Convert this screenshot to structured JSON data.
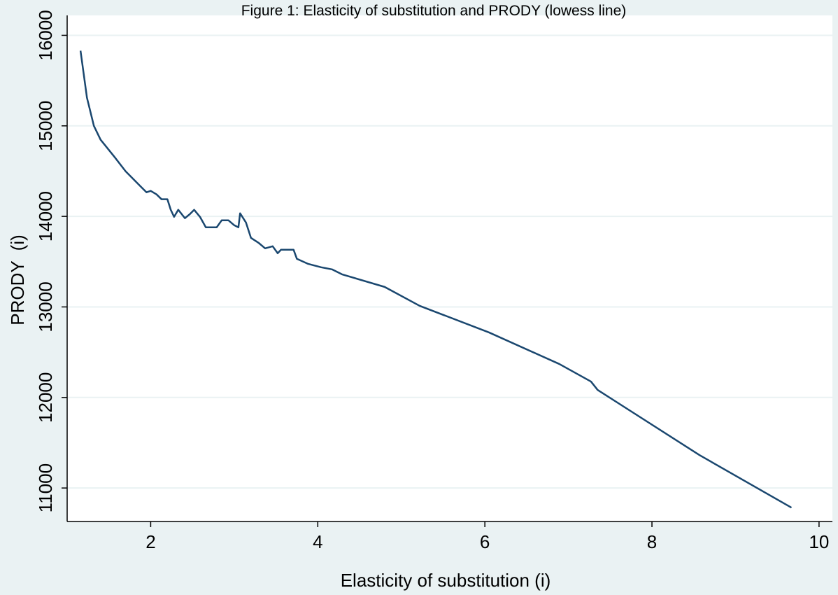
{
  "chart_data": {
    "type": "line",
    "title": "Figure 1: Elasticity of substitution and PRODY (lowess line)",
    "x_label": "Elasticity of substitution (i)",
    "y_label": "PRODY  (i)",
    "xlim": [
      1,
      10.16
    ],
    "ylim": [
      10630,
      16220
    ],
    "xticks": [
      2,
      4,
      6,
      8,
      10
    ],
    "yticks": [
      11000,
      12000,
      13000,
      14000,
      15000,
      16000
    ],
    "grid": true,
    "x": [
      1.16,
      1.237,
      1.32,
      1.4,
      1.57,
      1.7,
      1.865,
      1.95,
      2.0,
      2.07,
      2.13,
      2.2,
      2.24,
      2.28,
      2.33,
      2.41,
      2.47,
      2.52,
      2.59,
      2.66,
      2.79,
      2.85,
      2.93,
      3.0,
      3.05,
      3.07,
      3.14,
      3.2,
      3.29,
      3.37,
      3.46,
      3.52,
      3.56,
      3.71,
      3.75,
      3.88,
      4.04,
      4.17,
      4.29,
      4.8,
      5.22,
      6.05,
      6.89,
      7.27,
      7.35,
      8.57,
      9.67
    ],
    "series": [
      {
        "color": "#1a476f",
        "values": [
          15830,
          15311,
          15000,
          14847,
          14653,
          14498,
          14344,
          14266,
          14282,
          14243,
          14189,
          14189,
          14073,
          13995,
          14073,
          13980,
          14026,
          14073,
          13995,
          13879,
          13879,
          13957,
          13957,
          13902,
          13879,
          14034,
          13933,
          13763,
          13709,
          13647,
          13670,
          13593,
          13632,
          13632,
          13531,
          13477,
          13438,
          13415,
          13360,
          13221,
          13012,
          12718,
          12370,
          12176,
          12083,
          11363,
          10783
        ]
      }
    ]
  }
}
